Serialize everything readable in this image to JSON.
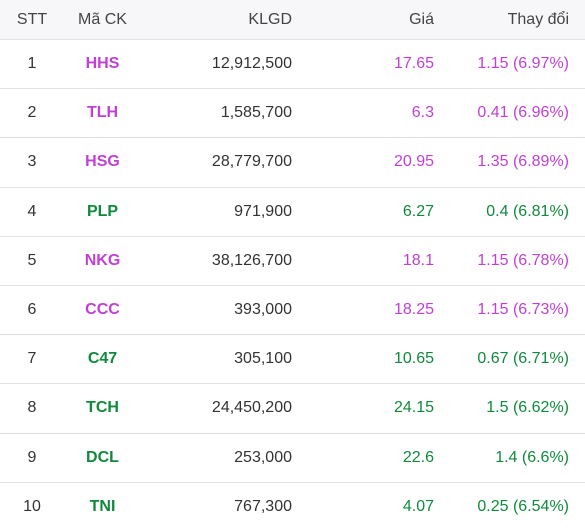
{
  "table": {
    "headers": {
      "stt": "STT",
      "ma_ck": "Mã CK",
      "klgd": "KLGD",
      "gia": "Giá",
      "thay_doi": "Thay đổi"
    },
    "colors": {
      "ceiling": "#c23fd6",
      "up": "#0f8a3c"
    },
    "rows": [
      {
        "stt": "1",
        "ma_ck": "HHS",
        "klgd": "12,912,500",
        "gia": "17.65",
        "thay_doi": "1.15 (6.97%)",
        "status": "ceiling"
      },
      {
        "stt": "2",
        "ma_ck": "TLH",
        "klgd": "1,585,700",
        "gia": "6.3",
        "thay_doi": "0.41 (6.96%)",
        "status": "ceiling"
      },
      {
        "stt": "3",
        "ma_ck": "HSG",
        "klgd": "28,779,700",
        "gia": "20.95",
        "thay_doi": "1.35 (6.89%)",
        "status": "ceiling"
      },
      {
        "stt": "4",
        "ma_ck": "PLP",
        "klgd": "971,900",
        "gia": "6.27",
        "thay_doi": "0.4 (6.81%)",
        "status": "up"
      },
      {
        "stt": "5",
        "ma_ck": "NKG",
        "klgd": "38,126,700",
        "gia": "18.1",
        "thay_doi": "1.15 (6.78%)",
        "status": "ceiling"
      },
      {
        "stt": "6",
        "ma_ck": "CCC",
        "klgd": "393,000",
        "gia": "18.25",
        "thay_doi": "1.15 (6.73%)",
        "status": "ceiling"
      },
      {
        "stt": "7",
        "ma_ck": "C47",
        "klgd": "305,100",
        "gia": "10.65",
        "thay_doi": "0.67 (6.71%)",
        "status": "up"
      },
      {
        "stt": "8",
        "ma_ck": "TCH",
        "klgd": "24,450,200",
        "gia": "24.15",
        "thay_doi": "1.5 (6.62%)",
        "status": "up"
      },
      {
        "stt": "9",
        "ma_ck": "DCL",
        "klgd": "253,000",
        "gia": "22.6",
        "thay_doi": "1.4 (6.6%)",
        "status": "up"
      },
      {
        "stt": "10",
        "ma_ck": "TNI",
        "klgd": "767,300",
        "gia": "4.07",
        "thay_doi": "0.25 (6.54%)",
        "status": "up"
      }
    ]
  }
}
